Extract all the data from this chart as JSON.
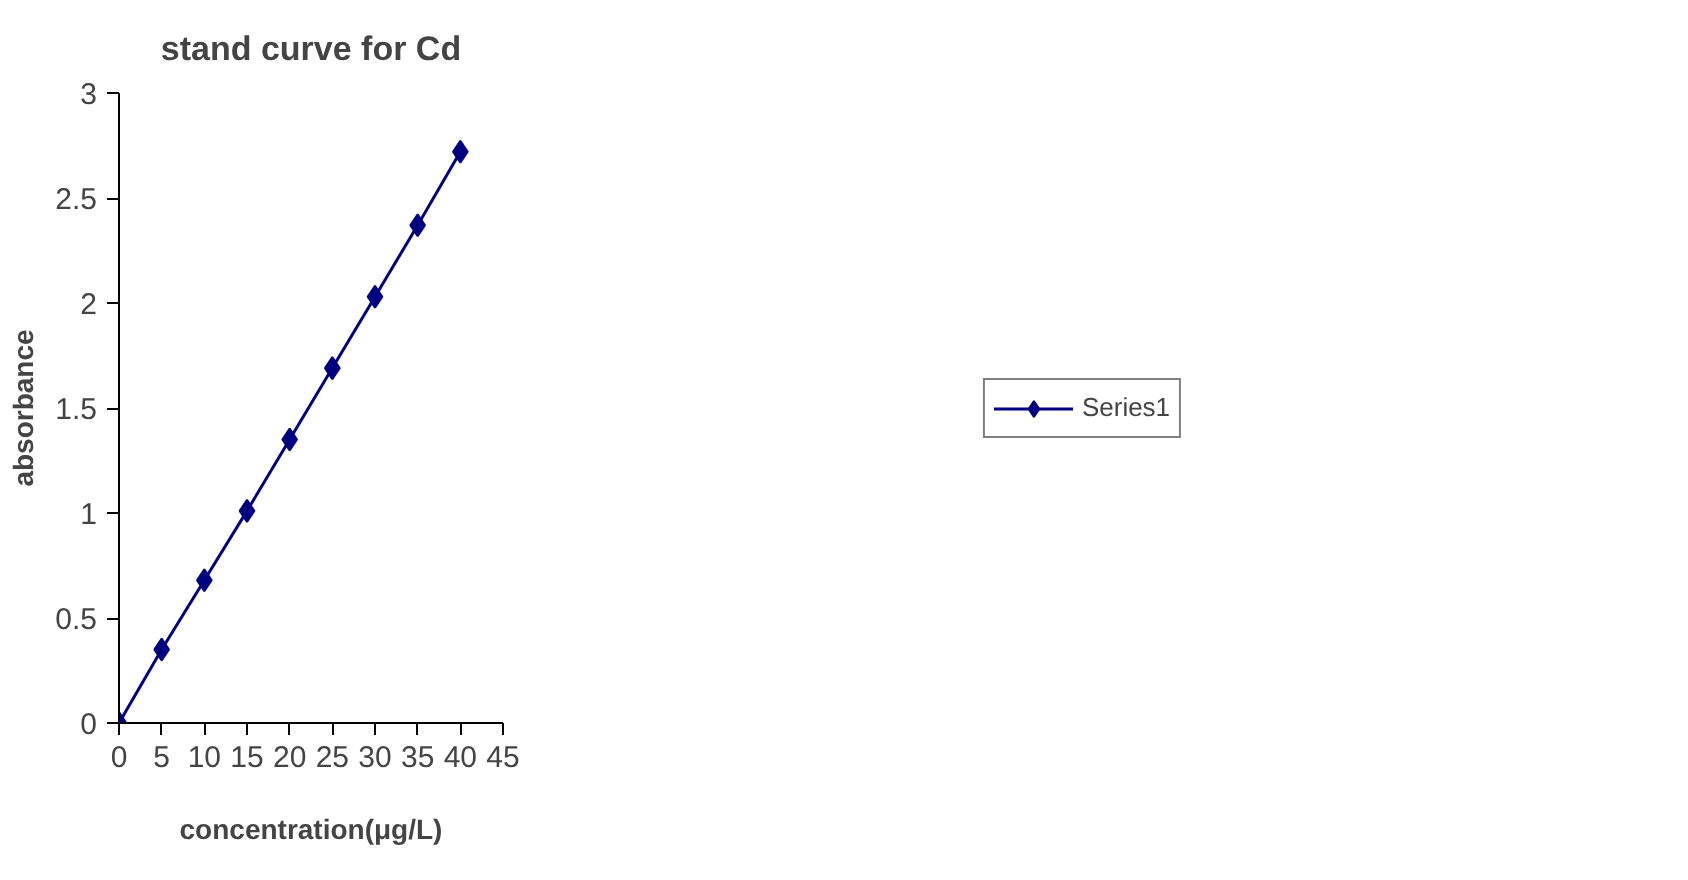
{
  "chart_data": {
    "type": "line",
    "title": "stand curve for Cd",
    "xlabel": "concentration(μg/L)",
    "ylabel": "absorbance",
    "x": [
      0,
      5,
      10,
      15,
      20,
      25,
      30,
      35,
      40
    ],
    "series": [
      {
        "name": "Series1",
        "color": "#000080",
        "values": [
          0,
          0.35,
          0.68,
          1.01,
          1.35,
          1.69,
          2.03,
          2.37,
          2.72
        ]
      }
    ],
    "xlim": [
      0,
      45
    ],
    "xticks": [
      0,
      5,
      10,
      15,
      20,
      25,
      30,
      35,
      40,
      45
    ],
    "ylim": [
      0,
      3
    ],
    "yticks": [
      0,
      0.5,
      1,
      1.5,
      2,
      2.5,
      3
    ],
    "grid": false,
    "legend": "right",
    "marker": "diamond",
    "line_style": "solid"
  }
}
